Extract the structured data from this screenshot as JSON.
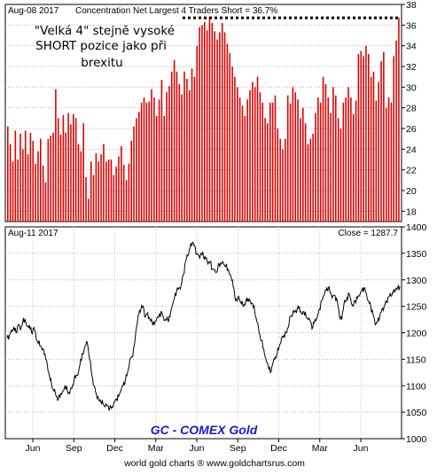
{
  "chart_data": [
    {
      "type": "bar",
      "header_left": "Aug-08  2017",
      "title": "Concentration Net Largest 4 Traders Short = 36.7%",
      "annotation_lines": [
        "\"Velká 4\" stejně vysoké",
        "SHORT pozice jako při",
        "brexitu"
      ],
      "ylim": [
        17,
        38
      ],
      "y_ticks": [
        18,
        20,
        22,
        24,
        26,
        28,
        30,
        32,
        34,
        36,
        38
      ],
      "reference_line": 36.7,
      "bar_color": "#dd0000",
      "values": [
        26.2,
        24.5,
        22.8,
        25.8,
        23.0,
        25.5,
        24.0,
        25.8,
        23.5,
        25.6,
        24.8,
        22.6,
        23.8,
        25.0,
        22.4,
        20.8,
        25.0,
        25.3,
        25.6,
        29.8,
        27.0,
        25.4,
        27.3,
        25.6,
        27.5,
        26.4,
        27.4,
        27.0,
        24.5,
        23.8,
        26.5,
        21.3,
        19.2,
        22.8,
        21.5,
        23.6,
        22.8,
        23.5,
        24.5,
        22.8,
        23.0,
        23.0,
        21.5,
        22.3,
        23.3,
        24.3,
        22.5,
        21.0,
        22.6,
        24.8,
        26.2,
        27.0,
        27.6,
        28.5,
        29.0,
        28.5,
        28.6,
        29.8,
        29.0,
        27.2,
        28.8,
        30.7,
        27.2,
        29.5,
        30.1,
        31.5,
        32.6,
        31.5,
        30.3,
        29.3,
        31.5,
        30.8,
        29.7,
        31.8,
        31.0,
        34.0,
        35.8,
        36.0,
        36.3,
        35.5,
        36.8,
        36.2,
        35.4,
        34.6,
        35.3,
        36.2,
        35.3,
        34.2,
        33.3,
        32.0,
        31.0,
        30.0,
        29.0,
        28.2,
        27.2,
        28.8,
        29.7,
        30.5,
        30.0,
        31.0,
        29.5,
        28.5,
        27.0,
        26.5,
        28.5,
        28.5,
        29.2,
        26.0,
        25.0,
        24.0,
        25.0,
        29.2,
        28.4,
        30.0,
        29.5,
        28.8,
        27.0,
        28.0,
        26.5,
        24.5,
        25.0,
        25.5,
        27.5,
        29.0,
        28.5,
        31.0,
        30.3,
        29.0,
        27.5,
        30.0,
        29.2,
        27.0,
        26.0,
        28.5,
        29.0,
        30.0,
        29.0,
        27.4,
        28.7,
        33.2,
        33.5,
        33.0,
        34.0,
        33.2,
        31.0,
        31.5,
        28.7,
        30.5,
        32.5,
        33.4,
        28.0,
        29.0,
        28.5,
        33.0,
        34.5,
        36.7
      ]
    },
    {
      "type": "line",
      "header_left": "Aug-11  2017",
      "header_right": "Close = 1287.7",
      "ylim": [
        1000,
        1400
      ],
      "y_ticks": [
        1000,
        1050,
        1100,
        1150,
        1200,
        1250,
        1300,
        1350,
        1400
      ],
      "x_tick_labels": [
        "Jun",
        "Sep",
        "Dec",
        "Mar",
        "Jun",
        "Sep",
        "Dec",
        "Mar",
        "Jun"
      ],
      "line_color": "#000000",
      "brand_label": "GC - COMEX Gold",
      "values": [
        1190,
        1195,
        1205,
        1210,
        1200,
        1215,
        1205,
        1220,
        1225,
        1212,
        1215,
        1200,
        1210,
        1190,
        1180,
        1175,
        1170,
        1160,
        1140,
        1118,
        1100,
        1090,
        1080,
        1075,
        1085,
        1090,
        1100,
        1090,
        1085,
        1095,
        1110,
        1120,
        1125,
        1150,
        1160,
        1175,
        1180,
        1150,
        1120,
        1100,
        1085,
        1075,
        1070,
        1065,
        1060,
        1062,
        1058,
        1060,
        1070,
        1075,
        1080,
        1090,
        1100,
        1110,
        1125,
        1150,
        1155,
        1175,
        1210,
        1235,
        1245,
        1250,
        1230,
        1238,
        1225,
        1220,
        1215,
        1225,
        1230,
        1240,
        1230,
        1225,
        1225,
        1230,
        1250,
        1265,
        1280,
        1285,
        1290,
        1310,
        1335,
        1345,
        1360,
        1370,
        1365,
        1350,
        1345,
        1350,
        1345,
        1340,
        1330,
        1335,
        1320,
        1320,
        1315,
        1330,
        1330,
        1330,
        1325,
        1320,
        1310,
        1300,
        1270,
        1260,
        1265,
        1255,
        1250,
        1260,
        1265,
        1260,
        1255,
        1240,
        1220,
        1200,
        1185,
        1170,
        1150,
        1140,
        1125,
        1140,
        1150,
        1160,
        1175,
        1190,
        1195,
        1200,
        1210,
        1230,
        1235,
        1240,
        1245,
        1250,
        1235,
        1240,
        1230,
        1225,
        1220,
        1210,
        1225,
        1230,
        1245,
        1260,
        1270,
        1280,
        1285,
        1275,
        1270,
        1270,
        1260,
        1230,
        1225,
        1255,
        1260,
        1275,
        1265,
        1250,
        1260,
        1265,
        1270,
        1280,
        1285,
        1275,
        1260,
        1250,
        1235,
        1215,
        1220,
        1230,
        1245,
        1250,
        1260,
        1268,
        1270,
        1275,
        1280,
        1285,
        1287.7
      ]
    }
  ],
  "footer": "world gold charts ® www.goldchartsrus.com"
}
